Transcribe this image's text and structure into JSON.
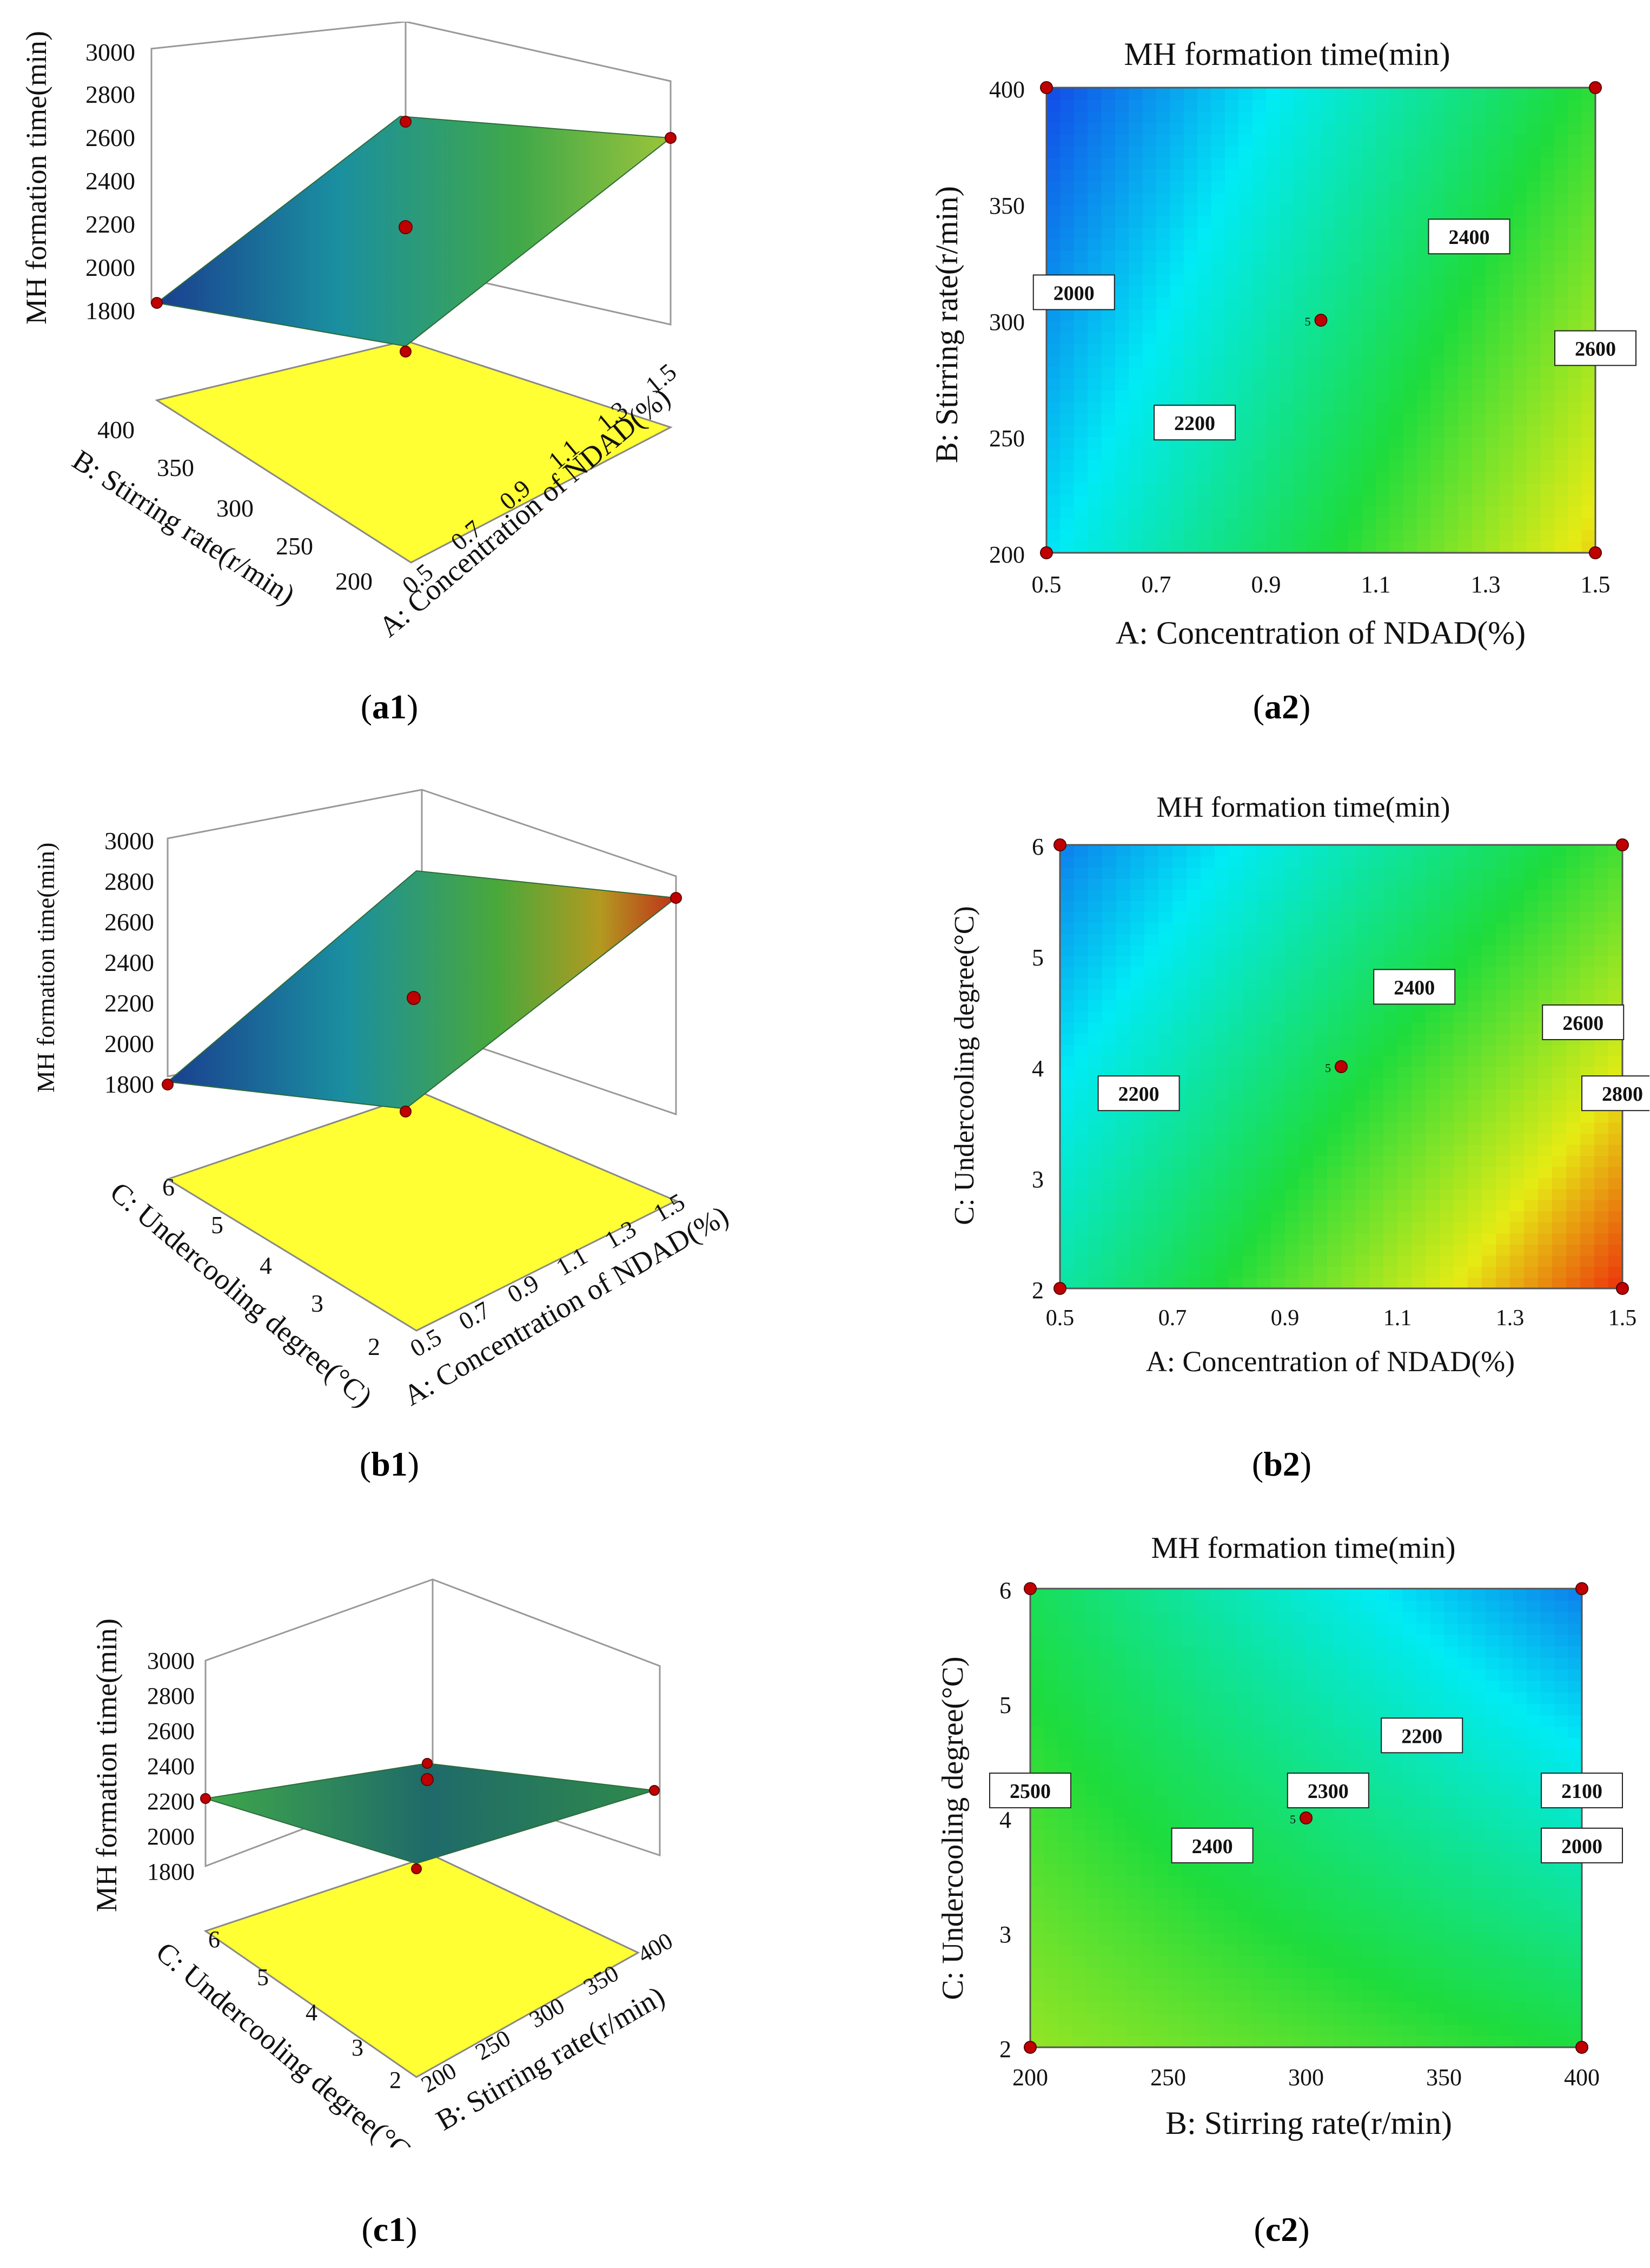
{
  "figure": {
    "captions": {
      "a1": "a1",
      "a2": "a2",
      "b1": "b1",
      "b2": "b2",
      "c1": "c1",
      "c2": "c2"
    }
  },
  "chart_data": [
    {
      "id": "a1",
      "type": "surface3d",
      "zlabel": "MH formation time(min)",
      "xlabel": "A: Concentration of NDAD(%)",
      "ylabel": "B: Stirring rate(r/min)",
      "x_ticks": [
        "0.5",
        "0.7",
        "0.9",
        "1.1",
        "1.3",
        "1.5"
      ],
      "y_ticks": [
        "200",
        "250",
        "300",
        "350",
        "400"
      ],
      "z_ticks": [
        "1800",
        "2000",
        "2200",
        "2400",
        "2600",
        "2800",
        "3000"
      ],
      "zlim": [
        1800,
        3000
      ],
      "corner_values": {
        "x0y0": 2000,
        "x1y0": 2680,
        "x0y1": 1920,
        "x1y1": 2680
      }
    },
    {
      "id": "a2",
      "type": "contour",
      "title": "MH formation time(min)",
      "xlabel": "A: Concentration of NDAD(%)",
      "ylabel": "B: Stirring rate(r/min)",
      "x_ticks": [
        "0.5",
        "0.7",
        "0.9",
        "1.1",
        "1.3",
        "1.5"
      ],
      "y_ticks": [
        "200",
        "250",
        "300",
        "350",
        "400"
      ],
      "xlim": [
        0.5,
        1.5
      ],
      "ylim": [
        200,
        400
      ],
      "contour_labels": [
        "2000",
        "2200",
        "2400",
        "2600"
      ],
      "center_point": {
        "x": 1.0,
        "y": 300,
        "label": "5"
      },
      "corner_values": {
        "x0y0": 2100,
        "x1y0": 2720,
        "x0y1": 1870,
        "x1y1": 2450
      }
    },
    {
      "id": "b1",
      "type": "surface3d",
      "zlabel": "MH formation time(min)",
      "xlabel": "A: Concentration of NDAD(%)",
      "ylabel": "C: Undercooling degree(°C)",
      "x_ticks": [
        "0.5",
        "0.7",
        "0.9",
        "1.1",
        "1.3",
        "1.5"
      ],
      "y_ticks": [
        "2",
        "3",
        "4",
        "5",
        "6"
      ],
      "z_ticks": [
        "1800",
        "2000",
        "2200",
        "2400",
        "2600",
        "2800",
        "3000"
      ],
      "zlim": [
        1800,
        3000
      ],
      "corner_values": {
        "x0y0": 2050,
        "x1y0": 2850,
        "x0y1": 1980,
        "x1y1": 2500
      }
    },
    {
      "id": "b2",
      "type": "contour",
      "title": "MH formation time(min)",
      "xlabel": "A: Concentration of NDAD(%)",
      "ylabel": "C: Undercooling degree(°C)",
      "x_ticks": [
        "0.5",
        "0.7",
        "0.9",
        "1.1",
        "1.3",
        "1.5"
      ],
      "y_ticks": [
        "2",
        "3",
        "4",
        "5",
        "6"
      ],
      "xlim": [
        0.5,
        1.5
      ],
      "ylim": [
        2,
        6
      ],
      "contour_labels": [
        "2200",
        "2400",
        "2600",
        "2800"
      ],
      "center_point": {
        "x": 1.0,
        "y": 4,
        "label": "5"
      },
      "corner_values": {
        "x0y0": 2250,
        "x1y0": 2880,
        "x0y1": 1950,
        "x1y1": 2480
      }
    },
    {
      "id": "c1",
      "type": "surface3d",
      "zlabel": "MH formation time(min)",
      "xlabel": "B: Stirring rate(r/min)",
      "ylabel": "C: Undercooling degree(°C)",
      "x_ticks": [
        "200",
        "250",
        "300",
        "350",
        "400"
      ],
      "y_ticks": [
        "2",
        "3",
        "4",
        "5",
        "6"
      ],
      "z_ticks": [
        "1800",
        "2000",
        "2200",
        "2400",
        "2600",
        "2800",
        "3000"
      ],
      "zlim": [
        1800,
        3000
      ],
      "corner_values": {
        "x0y0": 2600,
        "x1y0": 2450,
        "x0y1": 2250,
        "x1y1": 2000
      }
    },
    {
      "id": "c2",
      "type": "contour",
      "title": "MH formation time(min)",
      "xlabel": "B: Stirring rate(r/min)",
      "ylabel": "C: Undercooling degree(°C)",
      "x_ticks": [
        "200",
        "250",
        "300",
        "350",
        "400"
      ],
      "y_ticks": [
        "2",
        "3",
        "4",
        "5",
        "6"
      ],
      "xlim": [
        200,
        400
      ],
      "ylim": [
        2,
        6
      ],
      "contour_labels": [
        "2000",
        "2100",
        "2200",
        "2300",
        "2400",
        "2500"
      ],
      "center_point": {
        "x": 300,
        "y": 4,
        "label": "5"
      },
      "corner_values": {
        "x0y0": 2580,
        "x1y0": 2420,
        "x0y1": 2380,
        "x1y1": 1950
      }
    }
  ]
}
